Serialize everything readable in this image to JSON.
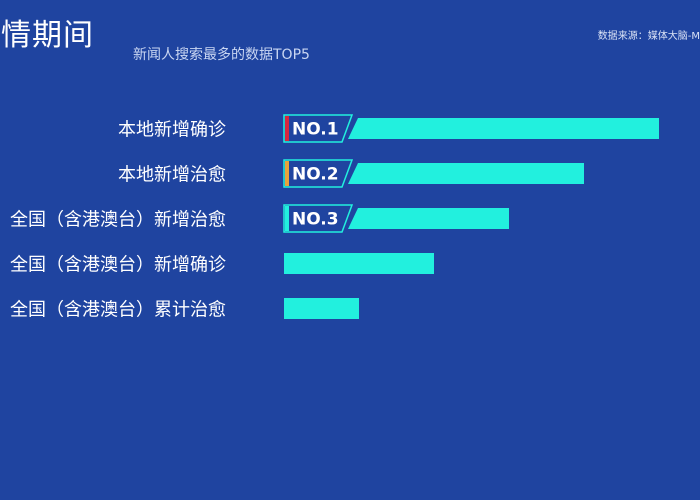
{
  "header": {
    "title": "疫情期间",
    "subtitle": "新闻人搜索最多的数据TOP5",
    "source": "数据来源：媒体大脑-M"
  },
  "colors": {
    "background": "#1f44a0",
    "bar": "#22f0de",
    "badge_outline": "#22f0de",
    "rank_colors": [
      "#d7263d",
      "#e8a33c",
      "#22f0de"
    ]
  },
  "chart_data": {
    "type": "bar",
    "orientation": "horizontal",
    "title": "新闻人搜索最多的数据TOP5",
    "categories": [
      "本地新增确诊",
      "本地新增治愈",
      "全国（含港澳台）新增治愈",
      "全国（含港澳台）新增确诊",
      "全国（含港澳台）累计治愈"
    ],
    "values": [
      5,
      4,
      3,
      2,
      1
    ],
    "badges": [
      "NO.1",
      "NO.2",
      "NO.3"
    ],
    "grid": false,
    "legend": "none"
  }
}
